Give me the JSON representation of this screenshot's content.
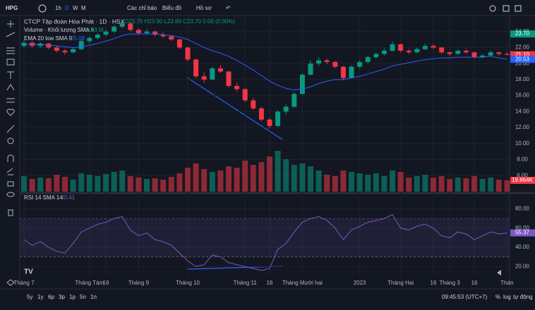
{
  "toolbar": {
    "symbol": "HPG",
    "intervals": [
      "1h",
      "D",
      "W",
      "M"
    ],
    "indicators": "Các chỉ báo",
    "layout": "Biểu đồ",
    "profile": "Hồ sơ"
  },
  "chart_data": {
    "type": "candlestick",
    "title": "CTCP Tập đoàn Hòa Phát · 1D · HSX",
    "ohlc_legend": "O23.70 H23.90 L23.60 C23.70 0.00 (0.00%)",
    "categories": [
      "Tháng 7",
      null,
      null,
      null,
      null,
      null,
      null,
      null,
      "Tháng Tám",
      null,
      "16",
      null,
      null,
      null,
      "Tháng 9",
      null,
      null,
      null,
      null,
      null,
      "Tháng 10",
      null,
      null,
      null,
      null,
      null,
      null,
      "Tháng 11",
      null,
      null,
      "16",
      null,
      null,
      null,
      "Tháng Mười hai",
      null,
      null,
      null,
      null,
      null,
      null,
      "2023",
      null,
      null,
      null,
      null,
      "Tháng Hai",
      null,
      null,
      null,
      "16",
      null,
      "Tháng 3",
      null,
      null,
      "16",
      null,
      null,
      null,
      "Thán"
    ],
    "candles": [
      [
        22.2,
        22.9,
        22.0,
        22.6
      ],
      [
        22.6,
        22.8,
        22.0,
        22.2
      ],
      [
        22.2,
        22.7,
        21.9,
        22.5
      ],
      [
        22.5,
        22.6,
        21.8,
        22.0
      ],
      [
        22.0,
        22.2,
        21.4,
        21.6
      ],
      [
        21.6,
        21.8,
        21.1,
        21.4
      ],
      [
        21.4,
        22.0,
        21.3,
        21.8
      ],
      [
        21.8,
        23.0,
        21.7,
        22.8
      ],
      [
        22.8,
        23.4,
        22.5,
        23.2
      ],
      [
        23.2,
        23.8,
        23.0,
        23.6
      ],
      [
        23.6,
        24.2,
        23.4,
        24.0
      ],
      [
        24.0,
        24.8,
        23.8,
        24.6
      ],
      [
        24.6,
        25.3,
        24.4,
        25.0
      ],
      [
        25.0,
        25.1,
        24.0,
        24.2
      ],
      [
        24.2,
        24.4,
        23.6,
        23.8
      ],
      [
        23.8,
        24.3,
        23.6,
        24.0
      ],
      [
        24.0,
        24.1,
        23.4,
        23.6
      ],
      [
        23.6,
        23.9,
        23.2,
        23.4
      ],
      [
        23.4,
        23.5,
        22.8,
        23.0
      ],
      [
        23.0,
        23.1,
        21.8,
        22.0
      ],
      [
        22.0,
        22.1,
        20.3,
        20.5
      ],
      [
        20.5,
        20.6,
        18.2,
        18.4
      ],
      [
        18.4,
        18.9,
        17.6,
        18.0
      ],
      [
        18.0,
        19.6,
        17.9,
        19.4
      ],
      [
        19.4,
        19.8,
        18.8,
        19.0
      ],
      [
        19.0,
        19.1,
        17.0,
        17.2
      ],
      [
        17.2,
        17.6,
        16.5,
        16.8
      ],
      [
        16.8,
        17.0,
        15.2,
        15.4
      ],
      [
        15.4,
        15.7,
        14.2,
        14.4
      ],
      [
        14.4,
        14.6,
        12.8,
        13.0
      ],
      [
        13.0,
        13.2,
        11.9,
        12.2
      ],
      [
        12.2,
        14.2,
        12.1,
        14.0
      ],
      [
        14.0,
        14.9,
        13.6,
        14.6
      ],
      [
        14.6,
        16.4,
        14.5,
        16.2
      ],
      [
        16.2,
        18.8,
        16.1,
        18.6
      ],
      [
        18.6,
        20.4,
        18.5,
        20.0
      ],
      [
        20.0,
        20.8,
        19.7,
        20.4
      ],
      [
        20.4,
        20.6,
        19.9,
        20.2
      ],
      [
        20.2,
        20.3,
        19.4,
        19.6
      ],
      [
        19.6,
        19.7,
        17.9,
        18.2
      ],
      [
        18.2,
        19.8,
        18.1,
        19.6
      ],
      [
        19.6,
        20.4,
        19.4,
        20.2
      ],
      [
        20.2,
        21.0,
        20.0,
        20.8
      ],
      [
        20.8,
        21.4,
        20.6,
        21.2
      ],
      [
        21.2,
        21.9,
        21.0,
        21.6
      ],
      [
        21.6,
        22.8,
        21.5,
        22.4
      ],
      [
        22.4,
        22.5,
        21.4,
        21.6
      ],
      [
        21.6,
        21.8,
        21.2,
        21.4
      ],
      [
        21.4,
        22.0,
        21.3,
        21.8
      ],
      [
        21.8,
        22.5,
        21.7,
        22.2
      ],
      [
        22.2,
        22.4,
        21.8,
        22.0
      ],
      [
        22.0,
        22.1,
        21.2,
        21.4
      ],
      [
        21.4,
        21.5,
        20.9,
        21.2
      ],
      [
        21.2,
        21.8,
        21.1,
        21.6
      ],
      [
        21.6,
        21.8,
        21.2,
        21.4
      ],
      [
        21.4,
        21.5,
        20.6,
        20.8
      ],
      [
        20.8,
        21.2,
        20.7,
        21.0
      ],
      [
        21.0,
        21.6,
        20.9,
        21.4
      ],
      [
        21.4,
        21.5,
        21.0,
        21.2
      ],
      [
        21.2,
        21.4,
        21.0,
        21.1
      ]
    ],
    "up_color": "#089981",
    "down_color": "#f23645",
    "ylim": [
      4,
      26
    ],
    "yticks": [
      {
        "value": 6,
        "label": "6.00"
      },
      {
        "value": 8,
        "label": "8.00"
      },
      {
        "value": 10,
        "label": "10.00"
      },
      {
        "value": 12,
        "label": "12.00"
      },
      {
        "value": 14,
        "label": "14.00"
      },
      {
        "value": 16,
        "label": "16.00"
      },
      {
        "value": 18,
        "label": "18.00"
      },
      {
        "value": 20,
        "label": "20.00"
      },
      {
        "value": 22,
        "label": "22.00"
      },
      {
        "value": 24,
        "label": "24.00"
      }
    ],
    "price_label": {
      "value": 23.7,
      "label": "23.70"
    },
    "last_close_label": "21.10",
    "ema": {
      "name": "EMA 20 low SMA 9",
      "value_label": "25.08",
      "color": "#2962ff",
      "last_label": "20.53",
      "values": [
        22.4,
        22.4,
        22.4,
        22.3,
        22.2,
        22.1,
        22.0,
        22.1,
        22.3,
        22.5,
        22.8,
        23.1,
        23.5,
        23.7,
        23.7,
        23.7,
        23.7,
        23.6,
        23.5,
        23.3,
        23.0,
        22.5,
        22.0,
        21.6,
        21.3,
        20.9,
        20.4,
        19.8,
        19.2,
        18.5,
        17.8,
        17.3,
        16.9,
        16.7,
        16.8,
        17.1,
        17.5,
        17.8,
        18.0,
        18.0,
        18.2,
        18.4,
        18.7,
        19.0,
        19.3,
        19.7,
        19.9,
        20.1,
        20.3,
        20.5,
        20.6,
        20.7,
        20.7,
        20.8,
        20.8,
        20.8,
        20.8,
        20.9,
        20.7,
        20.53
      ]
    },
    "volume": {
      "name": "Volume · Khối lượng SMA 9",
      "value_label": "1.33 M",
      "last_label": "19.864K",
      "vlim": [
        0,
        60
      ],
      "values": [
        22,
        18,
        20,
        19,
        24,
        21,
        17,
        26,
        24,
        22,
        25,
        28,
        30,
        22,
        20,
        18,
        19,
        17,
        21,
        26,
        34,
        40,
        32,
        28,
        30,
        36,
        34,
        44,
        38,
        42,
        50,
        58,
        46,
        38,
        40,
        36,
        30,
        24,
        22,
        30,
        28,
        26,
        24,
        26,
        22,
        30,
        28,
        20,
        22,
        24,
        20,
        22,
        18,
        20,
        19,
        22,
        18,
        20,
        17,
        16
      ]
    },
    "rsi": {
      "name": "RSI 14 SMA 14",
      "value_label": "30.41",
      "last_label": "55.37",
      "color": "#7e57c2",
      "rlim": [
        10,
        95
      ],
      "band": [
        30,
        70
      ],
      "ticks": [
        {
          "value": 20,
          "label": "20.00"
        },
        {
          "value": 40,
          "label": "40.00"
        },
        {
          "value": 60,
          "label": "60.00"
        },
        {
          "value": 80,
          "label": "80.00"
        }
      ],
      "values": [
        48,
        42,
        46,
        40,
        36,
        34,
        44,
        56,
        60,
        64,
        66,
        70,
        72,
        58,
        52,
        55,
        48,
        46,
        42,
        34,
        26,
        20,
        22,
        32,
        30,
        24,
        22,
        20,
        18,
        16,
        18,
        38,
        44,
        56,
        66,
        70,
        72,
        68,
        60,
        48,
        58,
        62,
        66,
        68,
        70,
        74,
        60,
        58,
        62,
        64,
        60,
        52,
        50,
        56,
        54,
        48,
        52,
        56,
        54,
        55
      ]
    }
  },
  "bottom_bar": {
    "ranges": [
      "5y",
      "1y",
      "6p",
      "3p",
      "1p",
      "5n",
      "1n"
    ],
    "clock": "09:45:53 (UTC+7)",
    "percent": "%",
    "log": "log",
    "auto": "tự động"
  }
}
